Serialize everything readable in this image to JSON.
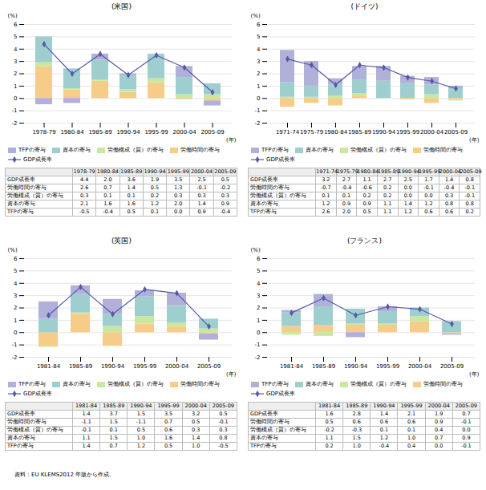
{
  "chart_data": [
    {
      "type": "bar",
      "title": "(米国)",
      "stacked": true,
      "grid": true,
      "legend": "bottom",
      "xlabel": "(年)",
      "ylabel": "(%)",
      "categories": [
        "1978-79",
        "1980-84",
        "1985-89",
        "1990-94",
        "1995-99",
        "2000-04",
        "2005-09"
      ],
      "ylim": [
        -2,
        6
      ],
      "yticks": [
        -2,
        -1,
        0,
        1,
        2,
        3,
        4,
        5,
        6
      ],
      "series": [
        {
          "name": "GDP成長率",
          "type": "line",
          "marker": "diamond",
          "color": "#5858a8",
          "values": [
            4.4,
            2.0,
            3.6,
            1.9,
            3.5,
            2.5,
            0.5
          ],
          "value_labels": [
            "4.4",
            "2.0",
            "3.6",
            "1.9",
            "3.5",
            "2.5",
            "0.5"
          ]
        },
        {
          "name": "労働時間の寄与",
          "type": "bar",
          "color": "#f5cc88",
          "values": [
            2.6,
            0.7,
            1.4,
            0.5,
            1.3,
            -0.1,
            -0.2
          ],
          "value_labels": [
            "2.6",
            "0.7",
            "1.4",
            "0.5",
            "1.3",
            "-0.1",
            "-0.2"
          ]
        },
        {
          "name": "労働構成（質）の寄与",
          "type": "bar",
          "color": "#c8e8a0",
          "values": [
            0.3,
            0.1,
            0.1,
            0.2,
            0.3,
            0.3,
            0.3
          ],
          "value_labels": [
            "0.3",
            "0.1",
            "0.1",
            "0.2",
            "0.3",
            "0.3",
            "0.3"
          ]
        },
        {
          "name": "資本の寄与",
          "type": "bar",
          "color": "#9ecece",
          "values": [
            2.1,
            1.6,
            1.6,
            1.2,
            2.0,
            1.4,
            0.9
          ],
          "value_labels": [
            "2.1",
            "1.6",
            "1.6",
            "1.2",
            "2.0",
            "1.4",
            "0.9"
          ]
        },
        {
          "name": "TFPの寄与",
          "type": "bar",
          "color": "#b0b0d8",
          "values": [
            -0.5,
            -0.4,
            0.5,
            0.1,
            0.0,
            0.9,
            -0.4
          ],
          "value_labels": [
            "-0.5",
            "-0.4",
            "0.5",
            "0.1",
            "0.0",
            "0.9",
            "-0.4"
          ]
        }
      ]
    },
    {
      "type": "bar",
      "title": "(ドイツ)",
      "stacked": true,
      "grid": true,
      "legend": "bottom",
      "xlabel": "(年)",
      "ylabel": "(%)",
      "categories": [
        "1971-74",
        "1975-79",
        "1980-84",
        "1985-89",
        "1990-94",
        "1995-99",
        "2000-04",
        "2005-09"
      ],
      "ylim": [
        -2,
        6
      ],
      "yticks": [
        -2,
        -1,
        0,
        1,
        2,
        3,
        4,
        5,
        6
      ],
      "series": [
        {
          "name": "GDP成長率",
          "type": "line",
          "marker": "diamond",
          "color": "#5858a8",
          "values": [
            3.2,
            2.7,
            1.1,
            2.7,
            2.5,
            1.7,
            1.4,
            0.8
          ],
          "value_labels": [
            "3.2",
            "2.7",
            "1.1",
            "2.7",
            "2.5",
            "1.7",
            "1.4",
            "0.8"
          ]
        },
        {
          "name": "労働時間の寄与",
          "type": "bar",
          "color": "#f5cc88",
          "values": [
            -0.7,
            -0.4,
            -0.6,
            0.2,
            0.0,
            -0.1,
            -0.4,
            -0.1
          ],
          "value_labels": [
            "-0.7",
            "-0.4",
            "-0.6",
            "0.2",
            "0.0",
            "-0.1",
            "-0.4",
            "-0.1"
          ]
        },
        {
          "name": "労働構成（質）の寄与",
          "type": "bar",
          "color": "#c8e8a0",
          "values": [
            0.1,
            0.1,
            0.2,
            0.2,
            0.0,
            0.0,
            0.3,
            -0.1
          ],
          "value_labels": [
            "0.1",
            "0.1",
            "0.2",
            "0.2",
            "0.0",
            "0.0",
            "0.3",
            "-0.1"
          ]
        },
        {
          "name": "資本の寄与",
          "type": "bar",
          "color": "#9ecece",
          "values": [
            1.2,
            0.9,
            0.9,
            1.1,
            1.4,
            1.2,
            0.8,
            0.8
          ],
          "value_labels": [
            "1.2",
            "0.9",
            "0.9",
            "1.1",
            "1.4",
            "1.2",
            "0.8",
            "0.8"
          ]
        },
        {
          "name": "TFPの寄与",
          "type": "bar",
          "color": "#b0b0d8",
          "values": [
            2.6,
            2.0,
            0.5,
            1.1,
            1.2,
            0.6,
            0.6,
            0.2
          ],
          "value_labels": [
            "2.6",
            "2.0",
            "0.5",
            "1.1",
            "1.2",
            "0.6",
            "0.6",
            "0.2"
          ]
        }
      ]
    },
    {
      "type": "bar",
      "title": "(英国)",
      "stacked": true,
      "grid": true,
      "legend": "bottom",
      "xlabel": "(年)",
      "ylabel": "(%)",
      "categories": [
        "1981-84",
        "1985-89",
        "1990-94",
        "1995-99",
        "2000-04",
        "2005-09"
      ],
      "ylim": [
        -2,
        6
      ],
      "yticks": [
        -2,
        -1,
        0,
        1,
        2,
        3,
        4,
        5,
        6
      ],
      "series": [
        {
          "name": "GDP成長率",
          "type": "line",
          "marker": "diamond",
          "color": "#5858a8",
          "values": [
            1.4,
            3.7,
            1.5,
            3.5,
            3.2,
            0.5
          ],
          "value_labels": [
            "1.4",
            "3.7",
            "1.5",
            "3.5",
            "3.2",
            "0.5"
          ]
        },
        {
          "name": "労働時間の寄与",
          "type": "bar",
          "color": "#f5cc88",
          "values": [
            -1.1,
            1.5,
            -1.1,
            0.7,
            0.5,
            -0.1
          ],
          "value_labels": [
            "-1.1",
            "1.5",
            "-1.1",
            "0.7",
            "0.5",
            "-0.1"
          ]
        },
        {
          "name": "労働構成（質）の寄与",
          "type": "bar",
          "color": "#c8e8a0",
          "values": [
            -0.1,
            0.1,
            0.5,
            0.6,
            0.3,
            0.3
          ],
          "value_labels": [
            "-0.1",
            "0.1",
            "0.5",
            "0.6",
            "0.3",
            "0.3"
          ]
        },
        {
          "name": "資本の寄与",
          "type": "bar",
          "color": "#9ecece",
          "values": [
            1.1,
            1.5,
            1.0,
            1.6,
            1.4,
            0.8
          ],
          "value_labels": [
            "1.1",
            "1.5",
            "1.0",
            "1.6",
            "1.4",
            "0.8"
          ]
        },
        {
          "name": "TFPの寄与",
          "type": "bar",
          "color": "#b0b0d8",
          "values": [
            1.4,
            0.7,
            1.2,
            0.5,
            1.0,
            -0.5
          ],
          "value_labels": [
            "1.4",
            "0.7",
            "1.2",
            "0.5",
            "1.0",
            "-0.5"
          ]
        }
      ]
    },
    {
      "type": "bar",
      "title": "(フランス)",
      "stacked": true,
      "grid": true,
      "legend": "bottom",
      "xlabel": "(年)",
      "ylabel": "(%)",
      "categories": [
        "1981-84",
        "1985-89",
        "1990-94",
        "1995-99",
        "2000-04",
        "2005-09"
      ],
      "ylim": [
        -2,
        6
      ],
      "yticks": [
        -2,
        -1,
        0,
        1,
        2,
        3,
        4,
        5,
        6
      ],
      "annotations": [
        "資料：EU KLEMS2012 年版から作成。"
      ],
      "series": [
        {
          "name": "GDP成長率",
          "type": "line",
          "marker": "diamond",
          "color": "#5858a8",
          "values": [
            1.6,
            2.8,
            1.4,
            2.1,
            1.9,
            0.7
          ],
          "value_labels": [
            "1.6",
            "2.8",
            "1.4",
            "2.1",
            "1.9",
            "0.7"
          ]
        },
        {
          "name": "労働時間の寄与",
          "type": "bar",
          "color": "#f5cc88",
          "values": [
            0.5,
            0.6,
            0.6,
            0.6,
            0.9,
            -0.1
          ],
          "value_labels": [
            "0.5",
            "0.6",
            "0.6",
            "0.6",
            "0.9",
            "-0.1"
          ]
        },
        {
          "name": "労働構成（質）の寄与",
          "type": "bar",
          "color": "#c8e8a0",
          "values": [
            -0.2,
            -0.3,
            0.1,
            0.1,
            0.4,
            0.0
          ],
          "value_labels": [
            "-0.2",
            "-0.3",
            "0.1",
            "0.1",
            "0.4",
            "0.0"
          ]
        },
        {
          "name": "資本の寄与",
          "type": "bar",
          "color": "#9ecece",
          "values": [
            1.1,
            1.5,
            1.2,
            1.0,
            0.7,
            0.9
          ],
          "value_labels": [
            "1.1",
            "1.5",
            "1.2",
            "1.0",
            "0.7",
            "0.9"
          ]
        },
        {
          "name": "TFPの寄与",
          "type": "bar",
          "color": "#b0b0d8",
          "values": [
            0.2,
            1.0,
            -0.4,
            0.4,
            0.0,
            -0.1
          ],
          "value_labels": [
            "0.2",
            "1.0",
            "-0.4",
            "0.4",
            "0.0",
            "-0.1"
          ]
        }
      ]
    }
  ]
}
